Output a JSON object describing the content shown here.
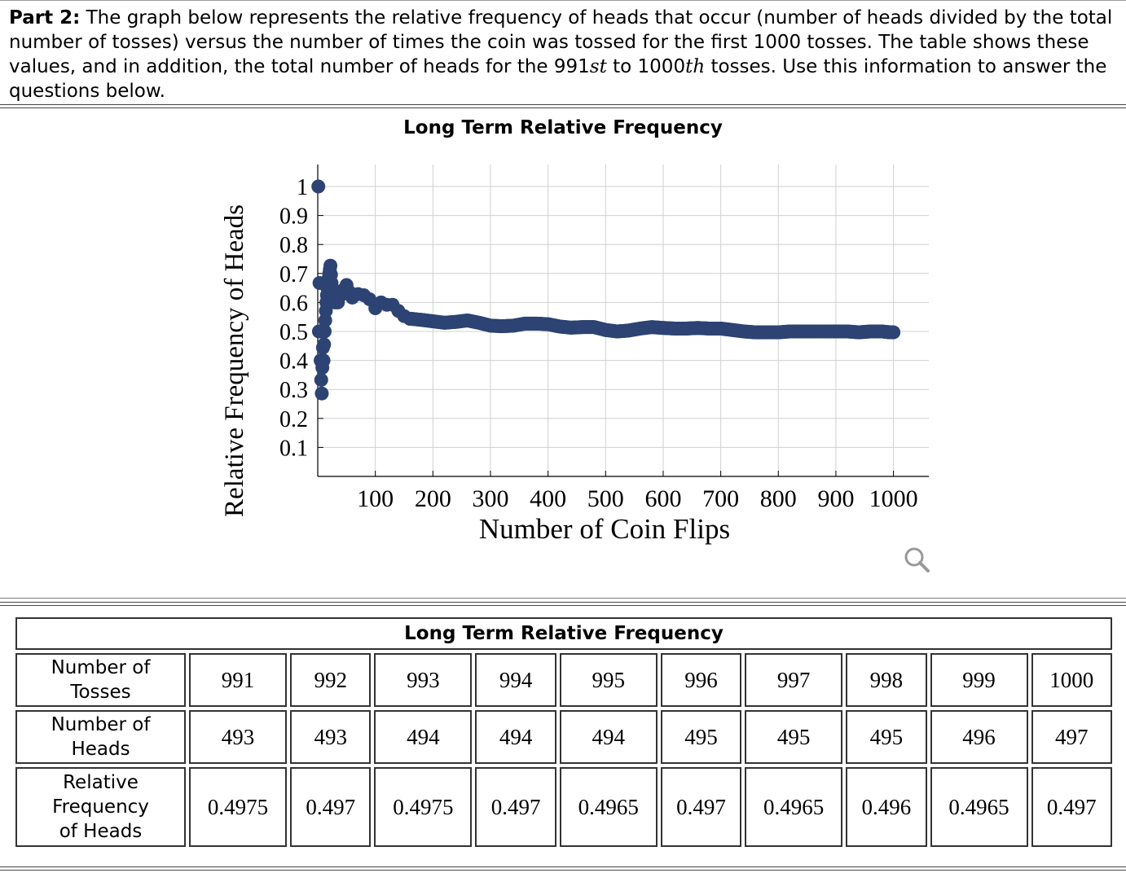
{
  "intro": {
    "part_label": "Part 2:",
    "text_before_991": " The graph below represents the relative frequency of heads that occur (number of heads divided by the total number of tosses) versus the number of times the coin was tossed for the first 1000 tosses. The table shows these values, and in addition, the total number of heads for the 991",
    "sup_991": "st",
    "text_between": " to 1000",
    "sup_1000": "th",
    "text_after": " tosses. Use this information to answer the questions below."
  },
  "zoom_icon": "magnifier-icon",
  "chart_data": {
    "type": "scatter",
    "title": "Long Term Relative Frequency",
    "xlabel": "Number of Coin Flips",
    "ylabel": "Relative Frequency of Heads",
    "xlim": [
      0,
      1060
    ],
    "ylim": [
      0,
      1.02
    ],
    "x_ticks": [
      100,
      200,
      300,
      400,
      500,
      600,
      700,
      800,
      900,
      1000
    ],
    "y_ticks": [
      0.1,
      0.2,
      0.3,
      0.4,
      0.5,
      0.6,
      0.7,
      0.8,
      0.9,
      1
    ],
    "grid": true,
    "marker_color": "#2d4373",
    "early_points": [
      [
        1,
        1
      ],
      [
        2,
        0.5
      ],
      [
        3,
        0.667
      ],
      [
        4,
        0.5
      ],
      [
        5,
        0.4
      ],
      [
        6,
        0.333
      ],
      [
        7,
        0.286
      ],
      [
        8,
        0.375
      ],
      [
        9,
        0.444
      ],
      [
        10,
        0.4
      ],
      [
        11,
        0.455
      ],
      [
        12,
        0.5
      ],
      [
        13,
        0.538
      ],
      [
        14,
        0.571
      ],
      [
        15,
        0.6
      ],
      [
        16,
        0.625
      ],
      [
        17,
        0.647
      ],
      [
        18,
        0.667
      ],
      [
        19,
        0.684
      ],
      [
        20,
        0.7
      ],
      [
        21,
        0.714
      ],
      [
        22,
        0.727
      ],
      [
        23,
        0.696
      ],
      [
        24,
        0.667
      ],
      [
        25,
        0.64
      ],
      [
        26,
        0.615
      ],
      [
        27,
        0.63
      ],
      [
        28,
        0.643
      ],
      [
        29,
        0.621
      ],
      [
        30,
        0.6
      ],
      [
        32,
        0.625
      ],
      [
        35,
        0.6
      ],
      [
        40,
        0.625
      ],
      [
        45,
        0.644
      ],
      [
        50,
        0.66
      ],
      [
        55,
        0.636
      ],
      [
        60,
        0.617
      ],
      [
        70,
        0.629
      ],
      [
        80,
        0.625
      ],
      [
        90,
        0.611
      ],
      [
        100,
        0.58
      ],
      [
        110,
        0.6
      ],
      [
        120,
        0.592
      ],
      [
        130,
        0.592
      ],
      [
        140,
        0.571
      ],
      [
        150,
        0.553
      ],
      [
        160,
        0.544
      ]
    ],
    "trend": [
      [
        160,
        0.544
      ],
      [
        180,
        0.54
      ],
      [
        200,
        0.535
      ],
      [
        220,
        0.53
      ],
      [
        240,
        0.533
      ],
      [
        260,
        0.538
      ],
      [
        280,
        0.53
      ],
      [
        300,
        0.52
      ],
      [
        320,
        0.518
      ],
      [
        340,
        0.52
      ],
      [
        360,
        0.527
      ],
      [
        380,
        0.527
      ],
      [
        400,
        0.525
      ],
      [
        420,
        0.517
      ],
      [
        440,
        0.513
      ],
      [
        460,
        0.515
      ],
      [
        480,
        0.515
      ],
      [
        500,
        0.505
      ],
      [
        520,
        0.5
      ],
      [
        540,
        0.503
      ],
      [
        560,
        0.51
      ],
      [
        580,
        0.515
      ],
      [
        600,
        0.512
      ],
      [
        620,
        0.51
      ],
      [
        640,
        0.51
      ],
      [
        660,
        0.512
      ],
      [
        680,
        0.51
      ],
      [
        700,
        0.51
      ],
      [
        720,
        0.505
      ],
      [
        740,
        0.5
      ],
      [
        760,
        0.497
      ],
      [
        780,
        0.497
      ],
      [
        800,
        0.497
      ],
      [
        820,
        0.5
      ],
      [
        840,
        0.5
      ],
      [
        860,
        0.5
      ],
      [
        880,
        0.5
      ],
      [
        900,
        0.5
      ],
      [
        920,
        0.5
      ],
      [
        940,
        0.497
      ],
      [
        960,
        0.5
      ],
      [
        980,
        0.5
      ],
      [
        991,
        0.4975
      ],
      [
        1000,
        0.497
      ]
    ]
  },
  "table": {
    "title": "Long Term Relative Frequency",
    "rows": [
      {
        "label_lines": [
          "Number of",
          "Tosses"
        ],
        "values": [
          "991",
          "992",
          "993",
          "994",
          "995",
          "996",
          "997",
          "998",
          "999",
          "1000"
        ]
      },
      {
        "label_lines": [
          "Number of",
          "Heads"
        ],
        "values": [
          "493",
          "493",
          "494",
          "494",
          "494",
          "495",
          "495",
          "495",
          "496",
          "497"
        ]
      },
      {
        "label_lines": [
          "Relative",
          "Frequency",
          "of Heads"
        ],
        "values": [
          "0.4975",
          "0.497",
          "0.4975",
          "0.497",
          "0.4965",
          "0.497",
          "0.4965",
          "0.496",
          "0.4965",
          "0.497"
        ]
      }
    ]
  }
}
